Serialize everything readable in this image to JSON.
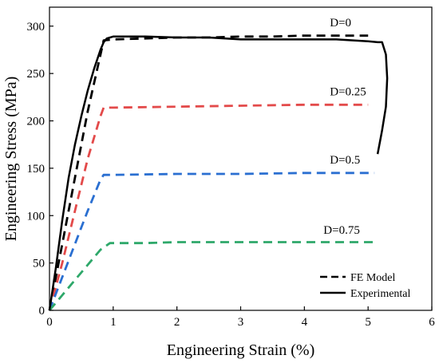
{
  "chart_data": {
    "type": "line",
    "xlabel": "Engineering Strain (%)",
    "ylabel": "Engineering Stress (MPa)",
    "xlim": [
      0,
      6
    ],
    "ylim": [
      0,
      320
    ],
    "xticks": [
      "0",
      "1",
      "2",
      "3",
      "4",
      "5",
      "6"
    ],
    "yticks": [
      "0",
      "50",
      "100",
      "150",
      "200",
      "250",
      "300"
    ],
    "grid": false,
    "legend": {
      "placement": "bottom-right",
      "entries": [
        "FE Model",
        "Experimental"
      ]
    },
    "annotations": [
      "D=0",
      "D=0.25",
      "D=0.5",
      "D=0.75"
    ],
    "series": [
      {
        "name": "FE Model",
        "label": "D=0",
        "color": "#000000",
        "style": "dashed",
        "x": [
          0,
          0.2,
          0.4,
          0.6,
          0.8,
          0.85,
          1.0,
          1.5,
          2.0,
          2.5,
          3.0,
          3.5,
          4.0,
          4.5,
          5.0
        ],
        "y": [
          0,
          70,
          140,
          210,
          270,
          285,
          286,
          287,
          288,
          288,
          289,
          289,
          290,
          290,
          290
        ]
      },
      {
        "name": "FE Model",
        "label": "D=0.25",
        "color": "#e34a4a",
        "style": "dashed",
        "x": [
          0,
          0.2,
          0.4,
          0.6,
          0.8,
          0.85,
          1.0,
          2.0,
          3.0,
          4.0,
          5.0
        ],
        "y": [
          0,
          50,
          105,
          160,
          205,
          214,
          214,
          215,
          216,
          217,
          217
        ]
      },
      {
        "name": "FE Model",
        "label": "D=0.5",
        "color": "#2a6fd1",
        "style": "dashed",
        "x": [
          0,
          0.2,
          0.4,
          0.6,
          0.8,
          0.85,
          1.0,
          2.0,
          3.0,
          4.0,
          5.1
        ],
        "y": [
          0,
          35,
          70,
          105,
          138,
          143,
          143,
          144,
          144,
          145,
          145
        ]
      },
      {
        "name": "FE Model",
        "label": "D=0.75",
        "color": "#2ea86a",
        "style": "dashed",
        "x": [
          0,
          0.2,
          0.4,
          0.6,
          0.8,
          0.95,
          1.5,
          2.0,
          3.0,
          4.0,
          5.1
        ],
        "y": [
          0,
          16,
          32,
          48,
          64,
          71,
          71,
          72,
          72,
          72,
          72
        ]
      },
      {
        "name": "Experimental",
        "color": "#000000",
        "style": "solid",
        "x": [
          0,
          0.1,
          0.2,
          0.3,
          0.4,
          0.5,
          0.6,
          0.7,
          0.8,
          0.85,
          0.9,
          1.0,
          1.1,
          1.5,
          2.0,
          2.5,
          3.0,
          3.5,
          4.0,
          4.5,
          5.0,
          5.15,
          5.22,
          5.28,
          5.3,
          5.28,
          5.22,
          5.15
        ],
        "y": [
          0,
          45,
          95,
          140,
          175,
          205,
          232,
          255,
          275,
          283,
          287,
          289,
          289,
          289,
          288,
          288,
          286,
          286,
          286,
          286,
          284,
          283,
          283,
          270,
          245,
          215,
          190,
          165
        ]
      }
    ]
  }
}
